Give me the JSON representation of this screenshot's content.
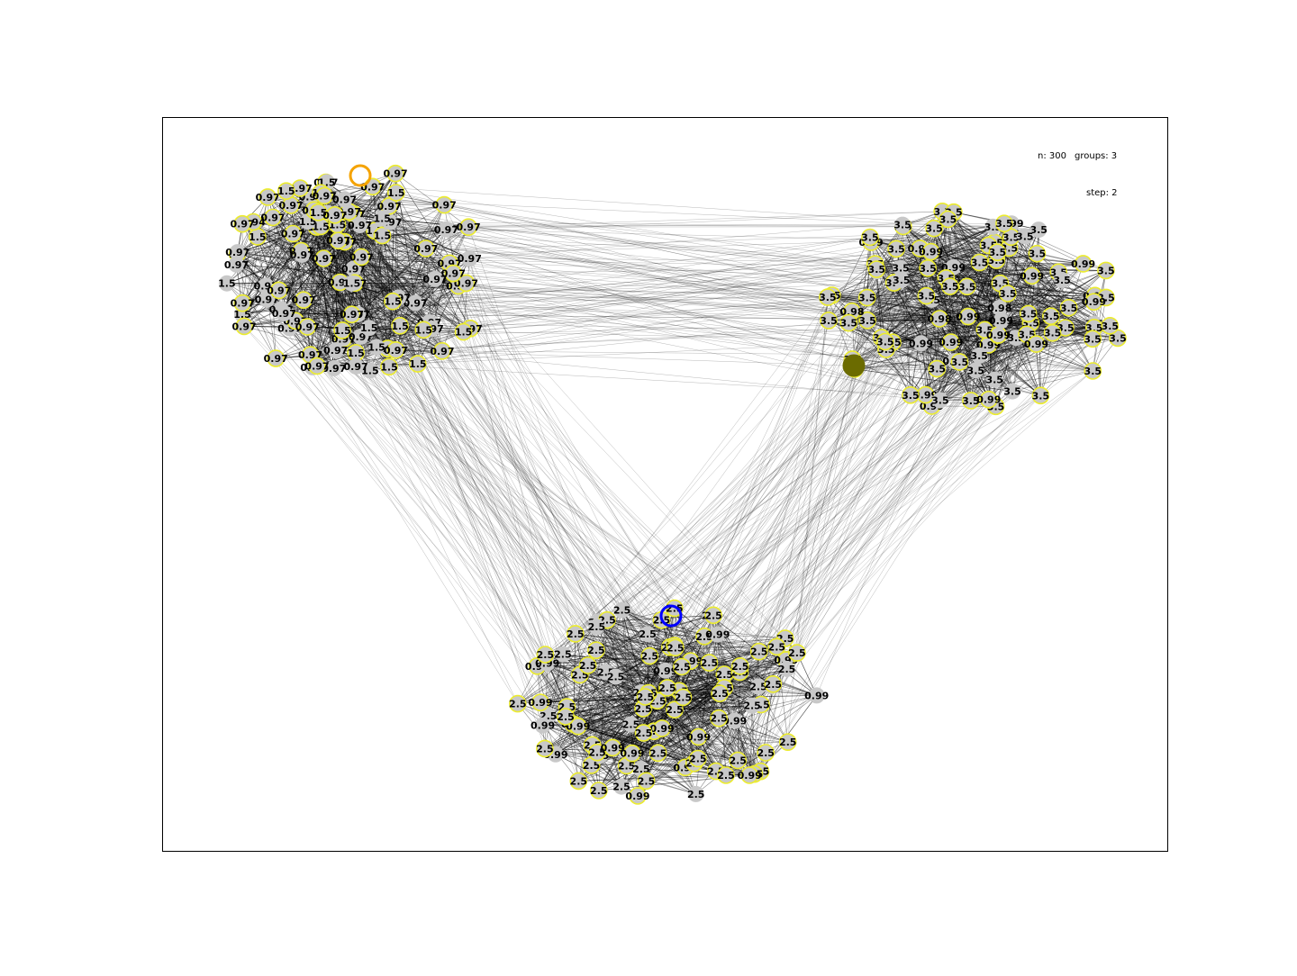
{
  "header": {
    "n_label": "n: 300",
    "groups_label": "groups: 3",
    "step_label": "step: 2"
  },
  "colors": {
    "node_fill": "#c8c8c8",
    "node_ring": "#ecec2e",
    "edge": "#000000",
    "frame": "#000000",
    "highlight_top": "#f5a300",
    "highlight_bottom": "#0000ff",
    "highlight_right": "#6b6b00"
  },
  "graph": {
    "groups": [
      {
        "name": "top-left",
        "labels": [
          "1.5",
          "0.97",
          "0.97",
          "1.5",
          "0.97",
          "0.97",
          "1.5",
          "0.97",
          "1.5",
          "0.97",
          "0.97",
          "0.97",
          "0.97",
          "0.97",
          "0.97",
          "1.5",
          "1.5",
          "0.97",
          "0.97",
          "0.97",
          "1.5",
          "0.97",
          "1.5",
          "0.97",
          "0.97",
          "1.5",
          "1.5",
          "0.97",
          "0.97",
          "0.97",
          "0.97",
          "0.97",
          "1.5",
          "0.97",
          "0.97",
          "0.97",
          "0.97",
          "0.97",
          "0.97",
          "1.5",
          "1.5",
          "0.97",
          "0.97",
          "0.97",
          "1.5",
          "1.5",
          "0.97",
          "0.97",
          "0.97",
          "0.97",
          "1.5",
          "0.97",
          "0.97",
          "0.97",
          "0.97",
          "1.5",
          "0.97",
          "0.97",
          "1.5",
          "0.97",
          "0.94",
          "0.97",
          "1.5",
          "0.97",
          "0.89",
          "1.5",
          "0.97",
          "0.97",
          "1.5",
          "0.97",
          "0.97",
          "0.97",
          "0.97",
          "0.97",
          "0.97",
          "1.5",
          "0.97",
          "0.97",
          "1.5",
          "0.97",
          "0.97",
          "1.5",
          "0.97",
          "0.97",
          "1.5",
          "0.97",
          "1.5",
          "0.97",
          "1.5",
          "0.97",
          "0.97",
          "0.97",
          "0.97",
          "0.97",
          "1.5",
          "0.97",
          "0.97",
          "1.5",
          "0.97",
          "0.97"
        ]
      },
      {
        "name": "right",
        "labels": [
          "3.5",
          "3.5",
          "3.5",
          "3.5",
          "3.5",
          "0.99",
          "3.5",
          "3.5",
          "0.98",
          "3.5",
          "3.5",
          "0.99",
          "3.5",
          "3.5",
          "3.5",
          "0.99",
          "3.5",
          "3.5",
          "0.99",
          "3.5",
          "3.5",
          "3.5",
          "3.5",
          "0.99",
          "3.5",
          "3.5",
          "3.5",
          "3.5",
          "0.99",
          "3.5",
          "3.5",
          "0.99",
          "3.5",
          "3.5",
          "3.5",
          "0.99",
          "3.5",
          "3.5",
          "0.98",
          "3.5",
          "3.5",
          "3.5",
          "0.99",
          "3.5",
          "3.5",
          "3.5",
          "0.99",
          "3.5",
          "3.5",
          "3.5",
          "0.99",
          "3.5",
          "3.5",
          "3.5",
          "0.98",
          "3.5",
          "3.5",
          "0.99",
          "3.5",
          "3.5",
          "3.5",
          "3.5",
          "0.99",
          "3.5",
          "3.5",
          "0.99",
          "3.5",
          "3.5",
          "3.5",
          "3.5",
          "0.98",
          "3.5",
          "3.5",
          "3.5",
          "0.99",
          "3.5",
          "3.5",
          "3.5",
          "3.5",
          "0.99",
          "3.5",
          "3.5",
          "3.5",
          "3.5",
          "0.99",
          "3.5",
          "3.5",
          "3.5",
          "0.99",
          "3.5",
          "3.5",
          "3.5",
          "3.5",
          "0.99",
          "3.5",
          "3.5",
          "3.5",
          "0.99",
          "3.5",
          "3.5"
        ]
      },
      {
        "name": "bottom",
        "labels": [
          "0.99",
          "0.99",
          "0.99",
          "2.5",
          "2.5",
          "2.5",
          "2.5",
          "2.5",
          "2.5",
          "0.99",
          "2.5",
          "2.5",
          "2.5",
          "2.5",
          "2.5",
          "0.99",
          "2.5",
          "2.5",
          "0.99",
          "2.5",
          "2.5",
          "2.5",
          "2.5",
          "2.5",
          "0.99",
          "2.5",
          "2.5",
          "2.5",
          "2.5",
          "2.5",
          "0.99",
          "2.5",
          "2.5",
          "2.5",
          "2.5",
          "2.5",
          "0.99",
          "2.5",
          "2.5",
          "2.5",
          "2.5",
          "0.99",
          "2.5",
          "2.5",
          "2.5",
          "2.5",
          "2.5",
          "0.99",
          "2.5",
          "2.5",
          "2.5",
          "0.99",
          "2.5",
          "2.5",
          "2.5",
          "2.5",
          "2.5",
          "0.99",
          "2.5",
          "2.5",
          "2.5",
          "2.5",
          "2.5",
          "0.99",
          "2.5",
          "2.5",
          "2.5",
          "2.5",
          "0.99",
          "2.5",
          "2.5",
          "2.5",
          "2.5",
          "2.5",
          "0.99",
          "2.5",
          "2.5",
          "2.5",
          "2.5",
          "0.99",
          "2.5",
          "2.5",
          "2.5",
          "2.5",
          "2.5",
          "0.99",
          "2.5",
          "2.5",
          "2.5",
          "2.5",
          "0.99",
          "2.5",
          "2.5",
          "2.5",
          "2.5",
          "2.5",
          "0.99",
          "2.5",
          "2.5",
          "2.5"
        ]
      }
    ]
  }
}
